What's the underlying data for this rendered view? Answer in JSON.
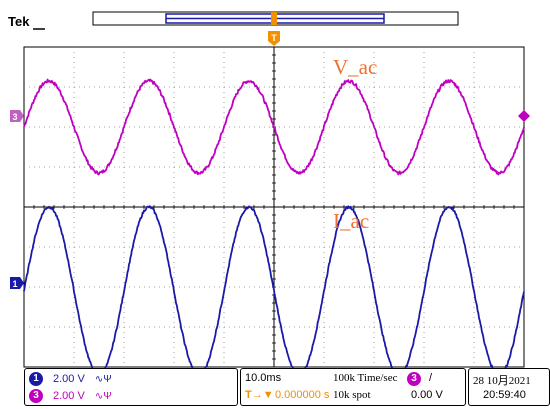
{
  "brand": "Tek",
  "trigger_marker": "T",
  "channels": [
    {
      "id": "3",
      "name": "V_ac",
      "color": "#c000c0",
      "badge_fill": "#c000c0"
    },
    {
      "id": "1",
      "name": "I_ac",
      "color": "#1a1aa8",
      "badge_fill": "#1a1aa8"
    }
  ],
  "status_bar": {
    "ch1": {
      "num": "1",
      "scale": "2.00 V",
      "coupling": "∿Ψ"
    },
    "ch3": {
      "num": "3",
      "scale": "2.00 V",
      "coupling": "∿Ψ"
    },
    "timebase": "10.0ms",
    "sample_rate": "100k Time/sec",
    "record_length": "10k spot",
    "trigger_position": "0.000000 s",
    "trigger_source": "3",
    "trigger_slope": "/",
    "trigger_level": "0.00 V",
    "date": "28 10月2021",
    "time": "20:59:40"
  },
  "chart_data": {
    "type": "line",
    "xlabel": "",
    "ylabel": "",
    "time_per_division_ms": 10,
    "divisions": {
      "x": 10,
      "y": 8
    },
    "grid": true,
    "series": [
      {
        "name": "V_ac",
        "channel": "3",
        "volts_per_div": 2.0,
        "frequency_hz": 50,
        "amplitude_div": 1.15,
        "center_div": 2.0,
        "phase_deg": 0,
        "color": "#c000c0",
        "noise": 0.04
      },
      {
        "name": "I_ac",
        "channel": "1",
        "volts_per_div": 2.0,
        "frequency_hz": 50,
        "amplitude_div": 2.1,
        "center_div": -2.1,
        "phase_deg": 0,
        "color": "#1a1aa8",
        "noise": 0.03
      }
    ]
  }
}
